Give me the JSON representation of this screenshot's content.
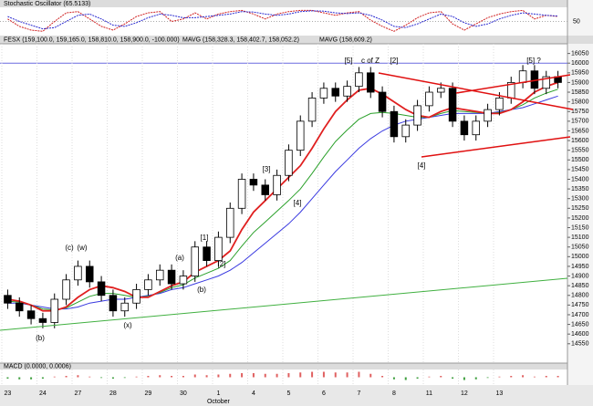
{
  "chart_data": {
    "type": "candlestick",
    "title": "FESX (159,100.0, 159,165.0, 158,810.0, 158,900.0, -100.000)",
    "indicator_labels": [
      {
        "text": "MAVG (158,328.3, 158,402.7, 158,052.2)",
        "color": "#2a2ad0"
      },
      {
        "text": "MAVG (158,609.2)",
        "color": "#d02020"
      }
    ],
    "categories": [
      "23",
      null,
      null,
      "24",
      null,
      null,
      "27",
      null,
      null,
      "28",
      null,
      null,
      "29",
      null,
      null,
      "30",
      null,
      null,
      "1",
      null,
      null,
      "4",
      null,
      null,
      "5",
      null,
      null,
      "6",
      null,
      null,
      "7",
      null,
      null,
      "8",
      null,
      null,
      "11",
      null,
      null,
      "12",
      null,
      null,
      "13",
      null,
      null,
      null,
      null,
      null
    ],
    "month_label": "October",
    "open": [
      14800,
      14760,
      14720,
      14680,
      14660,
      14780,
      14880,
      14950,
      14870,
      14800,
      14720,
      14760,
      14830,
      14880,
      14930,
      14860,
      14900,
      15050,
      14980,
      15100,
      15250,
      15400,
      15370,
      15320,
      15420,
      15550,
      15700,
      15820,
      15870,
      15830,
      15880,
      15950,
      15850,
      15750,
      15620,
      15680,
      15780,
      15850,
      15870,
      15700,
      15630,
      15700,
      15760,
      15820,
      15900,
      15960,
      15870,
      15930
    ],
    "high": [
      14830,
      14790,
      14750,
      14710,
      14810,
      14910,
      14980,
      14980,
      14900,
      14830,
      14790,
      14860,
      14910,
      14960,
      14960,
      14930,
      15080,
      15080,
      15130,
      15280,
      15430,
      15430,
      15400,
      15450,
      15580,
      15730,
      15850,
      15900,
      15900,
      15910,
      15980,
      15980,
      15880,
      15780,
      15710,
      15810,
      15880,
      15900,
      15900,
      15730,
      15730,
      15790,
      15850,
      15930,
      15990,
      15990,
      15960,
      15960
    ],
    "low": [
      14730,
      14690,
      14650,
      14630,
      14630,
      14750,
      14850,
      14840,
      14770,
      14690,
      14690,
      14730,
      14800,
      14850,
      14830,
      14830,
      14870,
      14950,
      14950,
      15070,
      15220,
      15340,
      15290,
      15290,
      15390,
      15520,
      15670,
      15790,
      15800,
      15800,
      15850,
      15820,
      15720,
      15590,
      15590,
      15650,
      15750,
      15820,
      15670,
      15600,
      15600,
      15670,
      15730,
      15790,
      15870,
      15840,
      15840,
      15870
    ],
    "close": [
      14760,
      14720,
      14680,
      14660,
      14780,
      14880,
      14950,
      14870,
      14800,
      14720,
      14760,
      14830,
      14880,
      14930,
      14860,
      14900,
      15050,
      14980,
      15100,
      15250,
      15400,
      15370,
      15320,
      15420,
      15550,
      15700,
      15820,
      15870,
      15830,
      15880,
      15950,
      15850,
      15750,
      15620,
      15680,
      15780,
      15850,
      15870,
      15700,
      15630,
      15700,
      15760,
      15820,
      15900,
      15960,
      15870,
      15930,
      15900
    ],
    "moving_averages": [
      {
        "color": "#3a3ae0",
        "values": [
          14760,
          14760,
          14750,
          14740,
          14730,
          14730,
          14740,
          14760,
          14770,
          14780,
          14780,
          14790,
          14800,
          14810,
          14830,
          14840,
          14860,
          14880,
          14900,
          14930,
          14970,
          15020,
          15070,
          15120,
          15170,
          15230,
          15300,
          15370,
          15440,
          15500,
          15560,
          15610,
          15650,
          15680,
          15700,
          15710,
          15720,
          15730,
          15740,
          15740,
          15740,
          15740,
          15750,
          15760,
          15770,
          15790,
          15810,
          15830
        ]
      },
      {
        "color": "#2aa02a",
        "values": [
          14770,
          14765,
          14750,
          14730,
          14725,
          14735,
          14765,
          14795,
          14810,
          14810,
          14800,
          14790,
          14795,
          14815,
          14840,
          14855,
          14890,
          14915,
          14940,
          14980,
          15055,
          15125,
          15180,
          15235,
          15290,
          15350,
          15430,
          15515,
          15595,
          15655,
          15710,
          15740,
          15745,
          15740,
          15730,
          15720,
          15720,
          15740,
          15755,
          15750,
          15745,
          15740,
          15745,
          15760,
          15785,
          15820,
          15845,
          15865
        ]
      },
      {
        "color": "#e02020",
        "values": [
          14780,
          14770,
          14750,
          14720,
          14720,
          14740,
          14790,
          14830,
          14850,
          14840,
          14820,
          14790,
          14790,
          14820,
          14850,
          14870,
          14920,
          14950,
          14980,
          15030,
          15140,
          15230,
          15290,
          15350,
          15410,
          15470,
          15560,
          15660,
          15750,
          15810,
          15860,
          15870,
          15840,
          15800,
          15760,
          15730,
          15720,
          15750,
          15770,
          15760,
          15750,
          15740,
          15740,
          15760,
          15800,
          15850,
          15880,
          15900
        ]
      }
    ],
    "hline": 16000,
    "hline_color": "#6a6ae0",
    "ylim": [
      14450,
      16100
    ],
    "yticks": [
      14550,
      14600,
      14650,
      14700,
      14750,
      14800,
      14850,
      14900,
      14950,
      15000,
      15050,
      15100,
      15150,
      15200,
      15250,
      15300,
      15350,
      15400,
      15450,
      15500,
      15550,
      15600,
      15650,
      15700,
      15750,
      15800,
      15850,
      15900,
      15950,
      16000,
      16050
    ],
    "annotations": [
      {
        "text": "(b)",
        "color": "#c01010"
      },
      {
        "text": "(c)",
        "color": "#c01010"
      },
      {
        "text": "(w)",
        "color": "#2020a0"
      },
      {
        "text": "(x)",
        "color": "#2020a0"
      },
      {
        "text": "(a)",
        "color": "#c01010"
      },
      {
        "text": "(b)",
        "color": "#c01010"
      },
      {
        "text": "[1]",
        "color": "#2020a0"
      },
      {
        "text": "[2]",
        "color": "#2020a0"
      },
      {
        "text": "[3]",
        "color": "#2020a0"
      },
      {
        "text": "[4]",
        "color": "#2020a0"
      },
      {
        "text": "[5]",
        "color": "#2020a0"
      },
      {
        "text": "c of Z",
        "color": "#2020a0"
      },
      {
        "text": "[2]",
        "color": "#2020a0"
      },
      {
        "text": "[4]",
        "color": "#2020a0"
      },
      {
        "text": "[5] ?",
        "color": "#2020a0"
      }
    ],
    "stochastic": {
      "label": "Stochastic Oscillator (65.5133)",
      "ylim": [
        0,
        100
      ],
      "yticks": [
        50
      ],
      "k_color": "#d02020",
      "d_color": "#2a2ad0",
      "k": [
        60,
        30,
        15,
        10,
        50,
        85,
        90,
        60,
        30,
        15,
        40,
        70,
        85,
        90,
        50,
        60,
        85,
        60,
        80,
        90,
        95,
        80,
        60,
        80,
        90,
        95,
        95,
        85,
        75,
        85,
        90,
        55,
        30,
        10,
        35,
        65,
        85,
        90,
        40,
        15,
        40,
        65,
        80,
        90,
        95,
        60,
        75,
        70
      ],
      "d": [
        70,
        50,
        35,
        20,
        25,
        50,
        75,
        80,
        60,
        35,
        30,
        45,
        65,
        80,
        75,
        65,
        65,
        70,
        75,
        80,
        90,
        88,
        80,
        75,
        80,
        90,
        93,
        92,
        85,
        82,
        85,
        75,
        55,
        30,
        25,
        40,
        60,
        80,
        70,
        45,
        30,
        40,
        60,
        75,
        85,
        80,
        75,
        72
      ]
    },
    "macd": {
      "label": "MACD (0.0000, 0.0006)",
      "ylim": [
        -10,
        10
      ],
      "pos_color": "#e06060",
      "neg_color": "#40a040",
      "values": [
        -2,
        -3,
        -3,
        -2,
        1,
        2,
        3,
        1,
        -1,
        -2,
        -1,
        1,
        2,
        3,
        2,
        2,
        4,
        3,
        4,
        5,
        6,
        6,
        5,
        5,
        6,
        7,
        8,
        8,
        7,
        7,
        8,
        5,
        2,
        -3,
        -4,
        -2,
        1,
        2,
        -2,
        -4,
        -3,
        -1,
        1,
        2,
        3,
        1,
        2,
        2
      ]
    }
  }
}
